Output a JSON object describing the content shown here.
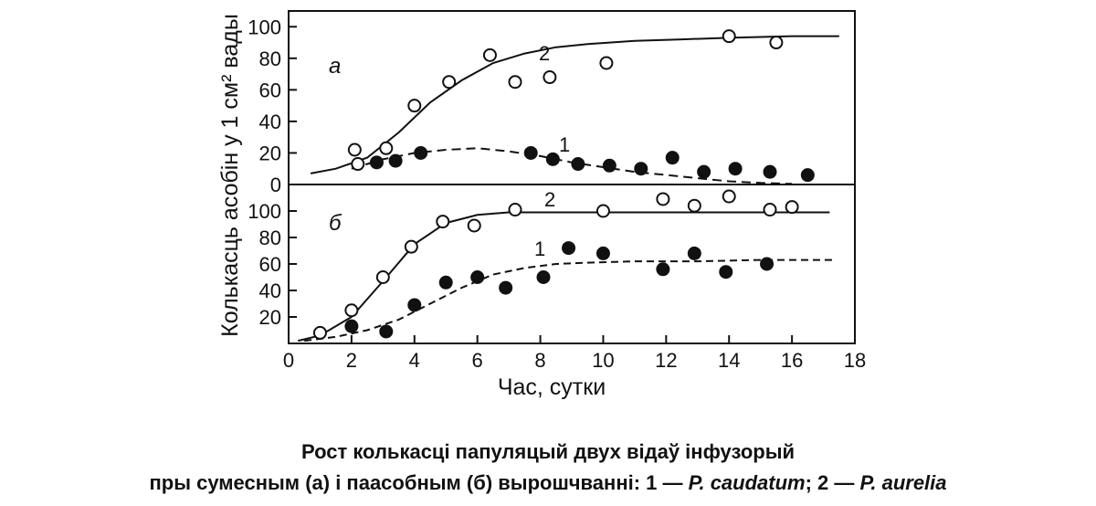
{
  "chart_data": [
    {
      "panel": "а",
      "type": "scatter",
      "x_axis": {
        "range": [
          0,
          18
        ],
        "ticks": [
          0,
          2,
          4,
          6,
          8,
          10,
          12,
          14,
          16,
          18
        ],
        "label": "Час, сутки"
      },
      "y_axis": {
        "range": [
          0,
          110
        ],
        "ticks": [
          0,
          20,
          40,
          60,
          80,
          100
        ],
        "label": "Колькасць асобін у 1 см² вады"
      },
      "series": [
        {
          "name": "2",
          "marker": "open-circle",
          "line_style": "solid",
          "points": [
            [
              2.1,
              22
            ],
            [
              2.2,
              13
            ],
            [
              3.1,
              23
            ],
            [
              4.0,
              50
            ],
            [
              5.1,
              65
            ],
            [
              6.4,
              82
            ],
            [
              7.2,
              65
            ],
            [
              8.3,
              68
            ],
            [
              10.1,
              77
            ],
            [
              14.0,
              94
            ],
            [
              15.5,
              90
            ]
          ],
          "curve": [
            [
              0.7,
              7
            ],
            [
              1.5,
              10
            ],
            [
              2.5,
              17
            ],
            [
              3.5,
              33
            ],
            [
              4.5,
              52
            ],
            [
              5.5,
              66
            ],
            [
              6.5,
              77
            ],
            [
              7.5,
              83
            ],
            [
              8.5,
              87
            ],
            [
              9.5,
              89
            ],
            [
              11,
              91
            ],
            [
              12.5,
              92
            ],
            [
              14,
              93
            ],
            [
              16,
              94
            ],
            [
              17.5,
              94
            ]
          ]
        },
        {
          "name": "1",
          "marker": "filled-circle",
          "line_style": "dashed",
          "points": [
            [
              2.8,
              14
            ],
            [
              3.4,
              15
            ],
            [
              4.2,
              20
            ],
            [
              7.7,
              20
            ],
            [
              8.4,
              16
            ],
            [
              9.2,
              13
            ],
            [
              10.2,
              12
            ],
            [
              11.2,
              10
            ],
            [
              12.2,
              17
            ],
            [
              13.2,
              8
            ],
            [
              14.2,
              10
            ],
            [
              15.3,
              8
            ],
            [
              16.5,
              6
            ]
          ],
          "curve": [
            [
              2,
              10
            ],
            [
              3,
              16
            ],
            [
              4,
              20
            ],
            [
              5,
              22
            ],
            [
              6,
              23
            ],
            [
              7,
              21
            ],
            [
              8,
              18
            ],
            [
              9,
              14
            ],
            [
              10,
              11
            ],
            [
              11,
              8
            ],
            [
              12,
              6
            ],
            [
              13,
              4
            ],
            [
              14,
              2
            ],
            [
              15,
              1
            ],
            [
              16,
              0.4
            ]
          ]
        }
      ]
    },
    {
      "panel": "б",
      "type": "scatter",
      "x_axis": {
        "range": [
          0,
          18
        ],
        "ticks": [
          0,
          2,
          4,
          6,
          8,
          10,
          12,
          14,
          16,
          18
        ],
        "label": "Час, сутки"
      },
      "y_axis": {
        "range": [
          0,
          120
        ],
        "ticks": [
          20,
          40,
          60,
          80,
          100
        ],
        "label": "Колькасць асобін у 1 см² вады"
      },
      "series": [
        {
          "name": "2",
          "marker": "open-circle",
          "line_style": "solid",
          "points": [
            [
              1.0,
              8
            ],
            [
              2.0,
              25
            ],
            [
              3.0,
              50
            ],
            [
              3.9,
              73
            ],
            [
              4.9,
              92
            ],
            [
              5.9,
              89
            ],
            [
              7.2,
              101
            ],
            [
              10.0,
              100
            ],
            [
              11.9,
              109
            ],
            [
              12.9,
              104
            ],
            [
              14.0,
              111
            ],
            [
              15.3,
              101
            ],
            [
              16.0,
              103
            ]
          ],
          "curve": [
            [
              0.3,
              2
            ],
            [
              1,
              6
            ],
            [
              2,
              20
            ],
            [
              3,
              47
            ],
            [
              4,
              75
            ],
            [
              5,
              91
            ],
            [
              6,
              97
            ],
            [
              7,
              99
            ],
            [
              8,
              99
            ],
            [
              10,
              99
            ],
            [
              12,
              99
            ],
            [
              14,
              99
            ],
            [
              16,
              99
            ],
            [
              17.2,
              99
            ]
          ]
        },
        {
          "name": "1",
          "marker": "filled-circle",
          "line_style": "dashed",
          "points": [
            [
              2.0,
              13
            ],
            [
              3.1,
              9
            ],
            [
              4.0,
              29
            ],
            [
              5.0,
              46
            ],
            [
              6.0,
              50
            ],
            [
              6.9,
              42
            ],
            [
              8.1,
              50
            ],
            [
              8.9,
              72
            ],
            [
              10.0,
              68
            ],
            [
              11.9,
              56
            ],
            [
              12.9,
              68
            ],
            [
              13.9,
              54
            ],
            [
              15.2,
              60
            ]
          ],
          "curve": [
            [
              0.5,
              2
            ],
            [
              1.5,
              5
            ],
            [
              2.5,
              10
            ],
            [
              3.5,
              18
            ],
            [
              4.5,
              30
            ],
            [
              5.5,
              42
            ],
            [
              6.5,
              52
            ],
            [
              7.5,
              57
            ],
            [
              8.5,
              60
            ],
            [
              9.5,
              61
            ],
            [
              11,
              62
            ],
            [
              13,
              62
            ],
            [
              15,
              63
            ],
            [
              17.3,
              63
            ]
          ]
        }
      ]
    }
  ],
  "caption": {
    "line1": "Рост колькасці папуляцый двух відаў інфузорый",
    "line2_prefix": "пры сумесным (а) і паасобным (б) вырошчванні: 1 — ",
    "species1": "P. caudatum",
    "separator": "; 2 — ",
    "species2": "P. aurelia"
  }
}
